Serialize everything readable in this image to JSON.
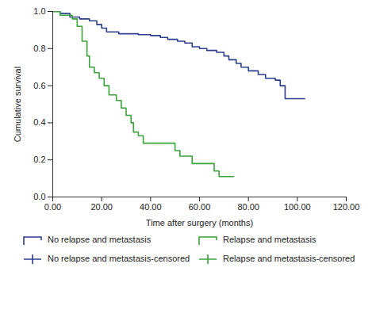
{
  "chart_data": {
    "type": "step",
    "x_label": "Time after surgery (months)",
    "y_label": "Cumulative survival",
    "xlim": [
      0,
      120
    ],
    "xticks": [
      {
        "value": 0,
        "label": "0.00"
      },
      {
        "value": 20,
        "label": "20.00"
      },
      {
        "value": 40,
        "label": "40.00"
      },
      {
        "value": 60,
        "label": "60.00"
      },
      {
        "value": 80,
        "label": "80.00"
      },
      {
        "value": 100,
        "label": "100.00"
      },
      {
        "value": 120,
        "label": "120.00"
      }
    ],
    "ylim": [
      0,
      1
    ],
    "yticks": [
      {
        "value": 0,
        "label": "0.0"
      },
      0.2,
      0.4,
      0.6,
      0.8,
      {
        "value": 1,
        "label": "1.0"
      }
    ],
    "grid": false,
    "legend": "bottom",
    "series": [
      {
        "name": "No relapse and metastasis",
        "color": "#2b3f8e",
        "type": "step",
        "x": [
          0,
          3,
          7,
          11,
          15,
          18,
          20,
          22,
          27,
          35,
          40,
          44,
          47,
          51,
          54,
          57,
          60,
          63,
          67,
          70,
          72,
          75,
          77,
          80,
          84,
          87,
          91,
          93,
          95,
          103
        ],
        "values": [
          1.0,
          0.99,
          0.97,
          0.96,
          0.95,
          0.93,
          0.91,
          0.89,
          0.88,
          0.875,
          0.87,
          0.86,
          0.85,
          0.84,
          0.83,
          0.81,
          0.8,
          0.79,
          0.78,
          0.76,
          0.74,
          0.72,
          0.7,
          0.68,
          0.66,
          0.64,
          0.63,
          0.6,
          0.53,
          0.53
        ]
      },
      {
        "name": "Relapse and metastasis",
        "color": "#3aa33a",
        "type": "step",
        "x": [
          0,
          3,
          8,
          10,
          12,
          14,
          15,
          17,
          19,
          21,
          23,
          26,
          28,
          30,
          32,
          33,
          35,
          37,
          50,
          52,
          57,
          66,
          68,
          74
        ],
        "values": [
          1.0,
          0.98,
          0.96,
          0.92,
          0.84,
          0.76,
          0.7,
          0.67,
          0.64,
          0.6,
          0.55,
          0.52,
          0.48,
          0.44,
          0.4,
          0.35,
          0.33,
          0.29,
          0.25,
          0.22,
          0.18,
          0.14,
          0.11,
          0.11
        ]
      },
      {
        "name": "No relapse and metastasis-censored",
        "color": "#2b3f8e",
        "type": "scatter",
        "marker": "plus",
        "x": [
          36,
          41,
          45,
          48,
          52,
          55,
          58,
          61,
          65,
          68,
          71,
          73,
          76,
          78,
          79,
          82,
          85,
          88,
          90,
          92,
          96,
          98,
          103
        ],
        "values": [
          0.875,
          0.87,
          0.86,
          0.85,
          0.84,
          0.83,
          0.81,
          0.8,
          0.79,
          0.78,
          0.76,
          0.74,
          0.72,
          0.7,
          0.7,
          0.68,
          0.66,
          0.64,
          0.64,
          0.63,
          0.53,
          0.53,
          0.53
        ]
      },
      {
        "name": "Relapse and metastasis-censored",
        "color": "#3aa33a",
        "type": "scatter",
        "marker": "plus",
        "x": [
          38,
          74
        ],
        "values": [
          0.29,
          0.11
        ]
      }
    ]
  }
}
